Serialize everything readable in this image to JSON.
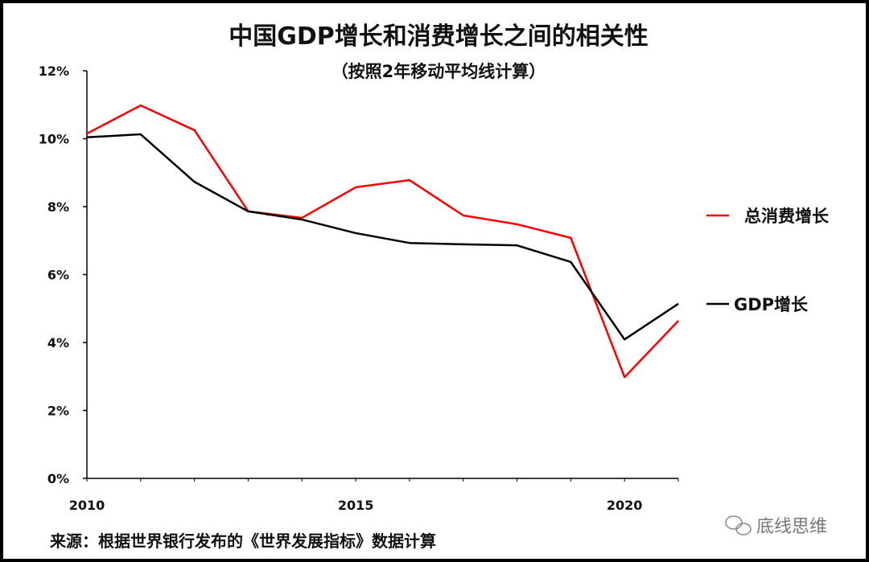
{
  "chart_data": {
    "type": "line",
    "title": "中国GDP增长和消费增长之间的相关性",
    "subtitle": "（按照2年移动平均线计算）",
    "x": [
      2010,
      2011,
      2012,
      2013,
      2014,
      2015,
      2016,
      2017,
      2018,
      2019,
      2020,
      2021
    ],
    "x_ticks": [
      "2010",
      "2015",
      "2020"
    ],
    "y_ticks": [
      "0%",
      "2%",
      "4%",
      "6%",
      "8%",
      "10%",
      "12%"
    ],
    "ylim": [
      0,
      12
    ],
    "xlim": [
      2010,
      2021
    ],
    "y_unit": "%",
    "grid": false,
    "legend_placement": "right",
    "series": [
      {
        "name": "总消费增长",
        "color": "#ff0000",
        "values": [
          10.15,
          10.98,
          10.25,
          7.86,
          7.67,
          8.57,
          8.78,
          7.74,
          7.48,
          7.08,
          2.98,
          4.64
        ]
      },
      {
        "name": "GDP增长",
        "color": "#000000",
        "values": [
          10.04,
          10.13,
          8.73,
          7.86,
          7.62,
          7.22,
          6.93,
          6.89,
          6.86,
          6.37,
          4.09,
          5.14
        ]
      }
    ],
    "source": "来源：根据世界银行发布的《世界发展指标》数据计算"
  },
  "watermark": "底线思维"
}
